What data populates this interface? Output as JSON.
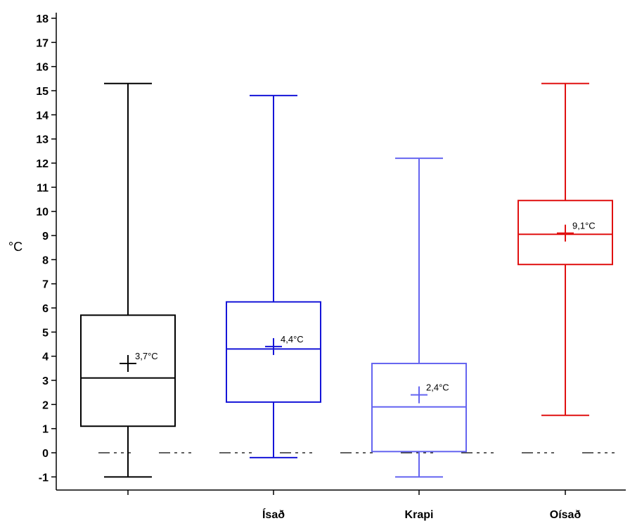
{
  "chart_data": {
    "type": "box",
    "ylabel": "°C",
    "ylim": [
      -1.5,
      18
    ],
    "yticks": [
      -1,
      0,
      1,
      2,
      3,
      4,
      5,
      6,
      7,
      8,
      9,
      10,
      11,
      12,
      13,
      14,
      15,
      16,
      17,
      18
    ],
    "yticklabels": [
      "-1",
      "0",
      "1",
      "2",
      "3",
      "4",
      "5",
      "6",
      "7",
      "8",
      "9",
      "10",
      "11",
      "12",
      "13",
      "14",
      "15",
      "16",
      "17",
      "18"
    ],
    "categories": [
      "",
      "Ísað",
      "Krapi",
      "Oísað"
    ],
    "reference_line": {
      "y": 0,
      "style": "dash-dot"
    },
    "boxes": [
      {
        "min": -1.0,
        "q1": 1.1,
        "median": 3.1,
        "q3": 5.7,
        "max": 15.3,
        "mean": 3.7,
        "mean_label": "3,7°C",
        "color": "#000000"
      },
      {
        "min": -0.2,
        "q1": 2.1,
        "median": 4.3,
        "q3": 6.25,
        "max": 14.8,
        "mean": 4.4,
        "mean_label": "4,4°C",
        "color": "#1515d8"
      },
      {
        "min": -1.0,
        "q1": 0.05,
        "median": 1.9,
        "q3": 3.7,
        "max": 12.2,
        "mean": 2.4,
        "mean_label": "2,4°C",
        "color": "#6464f0"
      },
      {
        "min": 1.55,
        "q1": 7.8,
        "median": 9.05,
        "q3": 10.45,
        "max": 15.3,
        "mean": 9.1,
        "mean_label": "9,1°C",
        "color": "#e01010"
      }
    ]
  }
}
